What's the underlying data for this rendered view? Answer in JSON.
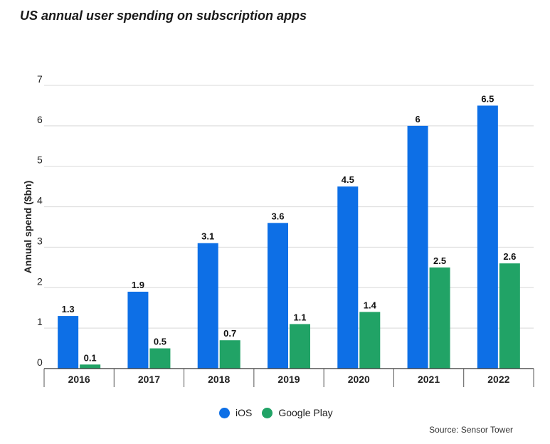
{
  "chart_data": {
    "type": "bar",
    "title": "US annual user spending on subscription apps",
    "xlabel": "",
    "ylabel": "Annual spend ($bn)",
    "ylim": [
      0,
      7
    ],
    "yticks": [
      0,
      1,
      2,
      3,
      4,
      5,
      6,
      7
    ],
    "categories": [
      "2016",
      "2017",
      "2018",
      "2019",
      "2020",
      "2021",
      "2022"
    ],
    "series": [
      {
        "name": "iOS",
        "color": "#0d6fe6",
        "values": [
          1.3,
          1.9,
          3.1,
          3.6,
          4.5,
          6,
          6.5
        ]
      },
      {
        "name": "Google Play",
        "color": "#21a366",
        "values": [
          0.1,
          0.5,
          0.7,
          1.1,
          1.4,
          2.5,
          2.6
        ]
      }
    ],
    "grid": true,
    "legend_position": "bottom-center",
    "source": "Source: Sensor Tower"
  }
}
